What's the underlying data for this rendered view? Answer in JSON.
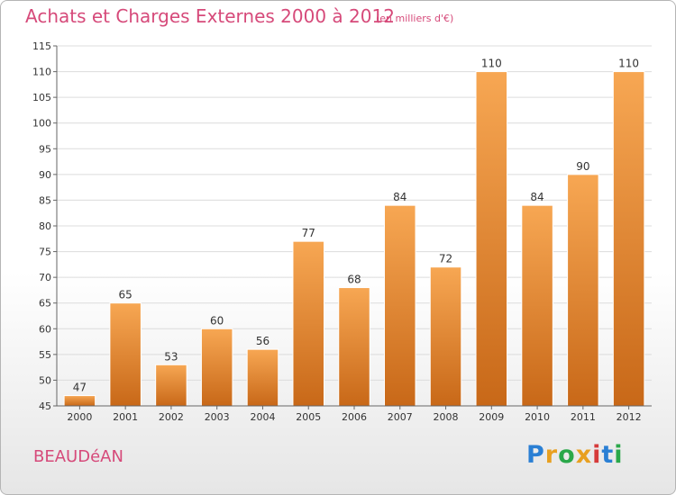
{
  "header": {
    "title": "Achats et Charges Externes 2000 à 2012",
    "unit_note": "(en milliers d'€)"
  },
  "footer": {
    "commune": "BEAUDéAN",
    "logo_text": "Proxiti",
    "logo_colors": [
      "#2a7fd4",
      "#e8a020",
      "#2aa84a",
      "#e8a020",
      "#d63b3b",
      "#2a7fd4",
      "#2aa84a"
    ]
  },
  "colors": {
    "bar_top": "#f7a753",
    "bar_bottom": "#c86818",
    "title": "#d64a7a"
  },
  "chart_data": {
    "type": "bar",
    "title": "Achats et Charges Externes 2000 à 2012",
    "subtitle": "(en milliers d'€)",
    "xlabel": "",
    "ylabel": "",
    "categories": [
      "2000",
      "2001",
      "2002",
      "2003",
      "2004",
      "2005",
      "2006",
      "2007",
      "2008",
      "2009",
      "2010",
      "2011",
      "2012"
    ],
    "values": [
      47,
      65,
      53,
      60,
      56,
      77,
      68,
      84,
      72,
      110,
      84,
      90,
      110
    ],
    "ylim": [
      45,
      115
    ],
    "yticks": [
      45,
      50,
      55,
      60,
      65,
      70,
      75,
      80,
      85,
      90,
      95,
      100,
      105,
      110,
      115
    ],
    "grid": true,
    "data_labels": true
  }
}
